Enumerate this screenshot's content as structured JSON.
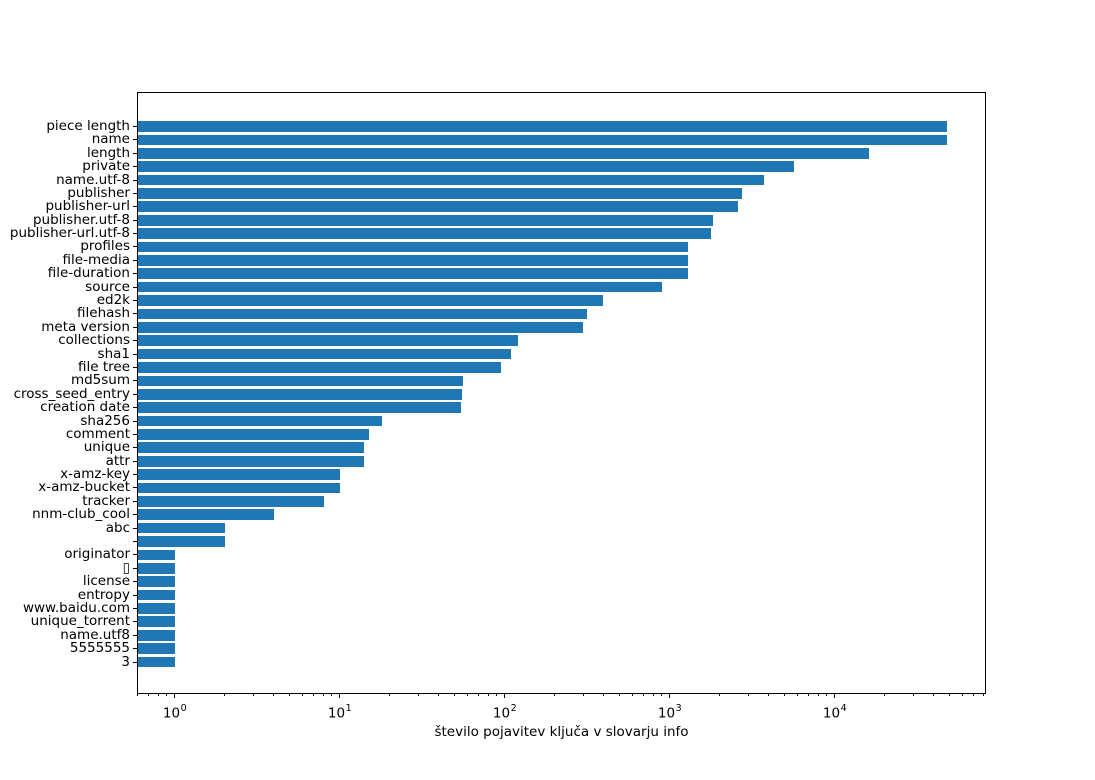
{
  "chart_data": {
    "type": "bar",
    "orientation": "horizontal",
    "xscale": "log",
    "xlabel": "število pojavitev ključa v slovarju info",
    "xlim": [
      0.59,
      82000
    ],
    "xtick_exponents": [
      0,
      1,
      2,
      3,
      4
    ],
    "grid": false,
    "legend": null,
    "bar_color": "#1f77b4",
    "categories": [
      "piece length",
      "name",
      "length",
      "private",
      "name.utf-8",
      "publisher",
      "publisher-url",
      "publisher.utf-8",
      "publisher-url.utf-8",
      "profiles",
      "file-media",
      "file-duration",
      "source",
      "ed2k",
      "filehash",
      "meta version",
      "collections",
      "sha1",
      "file tree",
      "md5sum",
      "cross_seed_entry",
      "creation date",
      "sha256",
      "comment",
      "unique",
      "attr",
      "x-amz-key",
      "x-amz-bucket",
      "tracker",
      "nnm-club_cool",
      "abc",
      "",
      "originator",
      "▯",
      "license",
      "entropy",
      "www.baidu.com",
      "unique_torrent",
      "name.utf8",
      "5555555",
      "3"
    ],
    "values": [
      47500,
      47900,
      16000,
      5650,
      3700,
      2730,
      2600,
      1815,
      1770,
      1285,
      1285,
      1290,
      900,
      395,
      313,
      296,
      120,
      108,
      94,
      56,
      55,
      54,
      18,
      15,
      14,
      14,
      10,
      10,
      8,
      4,
      2,
      2,
      1,
      1,
      1,
      1,
      1,
      1,
      1,
      1,
      1
    ]
  }
}
